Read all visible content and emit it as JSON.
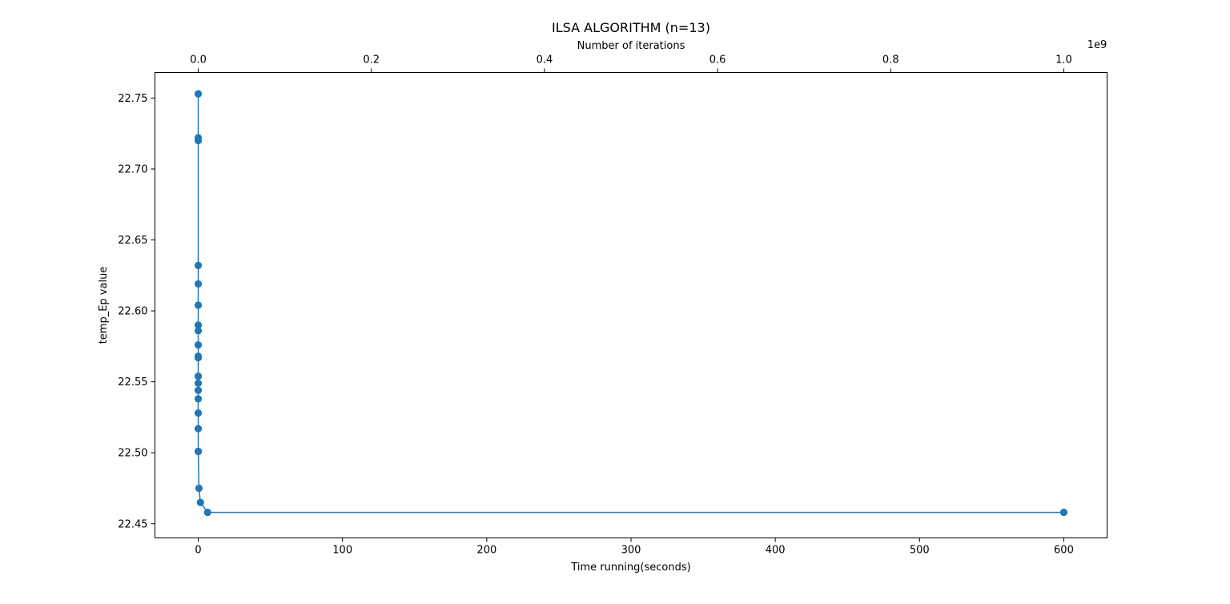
{
  "chart_data": {
    "type": "line",
    "title": "ILSA ALGORITHM (n=13)",
    "xlabel": "Time running(seconds)",
    "ylabel": "temp_Ep value",
    "top_xlabel": "Number of iterations",
    "top_offset_label": "1e9",
    "xlim": [
      -30,
      630
    ],
    "ylim": [
      22.44,
      22.768
    ],
    "top_xlim": [
      -0.05,
      1.05
    ],
    "x_ticks": [
      0,
      100,
      200,
      300,
      400,
      500,
      600
    ],
    "x_tick_labels": [
      "0",
      "100",
      "200",
      "300",
      "400",
      "500",
      "600"
    ],
    "y_ticks": [
      22.45,
      22.5,
      22.55,
      22.6,
      22.65,
      22.7,
      22.75
    ],
    "y_tick_labels": [
      "22.45",
      "22.50",
      "22.55",
      "22.60",
      "22.65",
      "22.70",
      "22.75"
    ],
    "top_ticks": [
      0,
      0.2,
      0.4,
      0.6,
      0.8,
      1.0
    ],
    "top_tick_labels": [
      "0.0",
      "0.2",
      "0.4",
      "0.6",
      "0.8",
      "1.0"
    ],
    "grid": false,
    "series": [
      {
        "color": "#1f77b4",
        "marker": "circle",
        "x": [
          0,
          0,
          0,
          0,
          0,
          0,
          0,
          0,
          0,
          0,
          0,
          0,
          0,
          0,
          0,
          0,
          0,
          0,
          0,
          0,
          0.5,
          1.5,
          6.5,
          600
        ],
        "y": [
          22.753,
          22.722,
          22.72,
          22.632,
          22.619,
          22.604,
          22.59,
          22.586,
          22.576,
          22.568,
          22.567,
          22.554,
          22.549,
          22.544,
          22.538,
          22.528,
          22.517,
          22.501,
          22.501,
          22.501,
          22.475,
          22.465,
          22.458,
          22.458
        ]
      }
    ]
  }
}
